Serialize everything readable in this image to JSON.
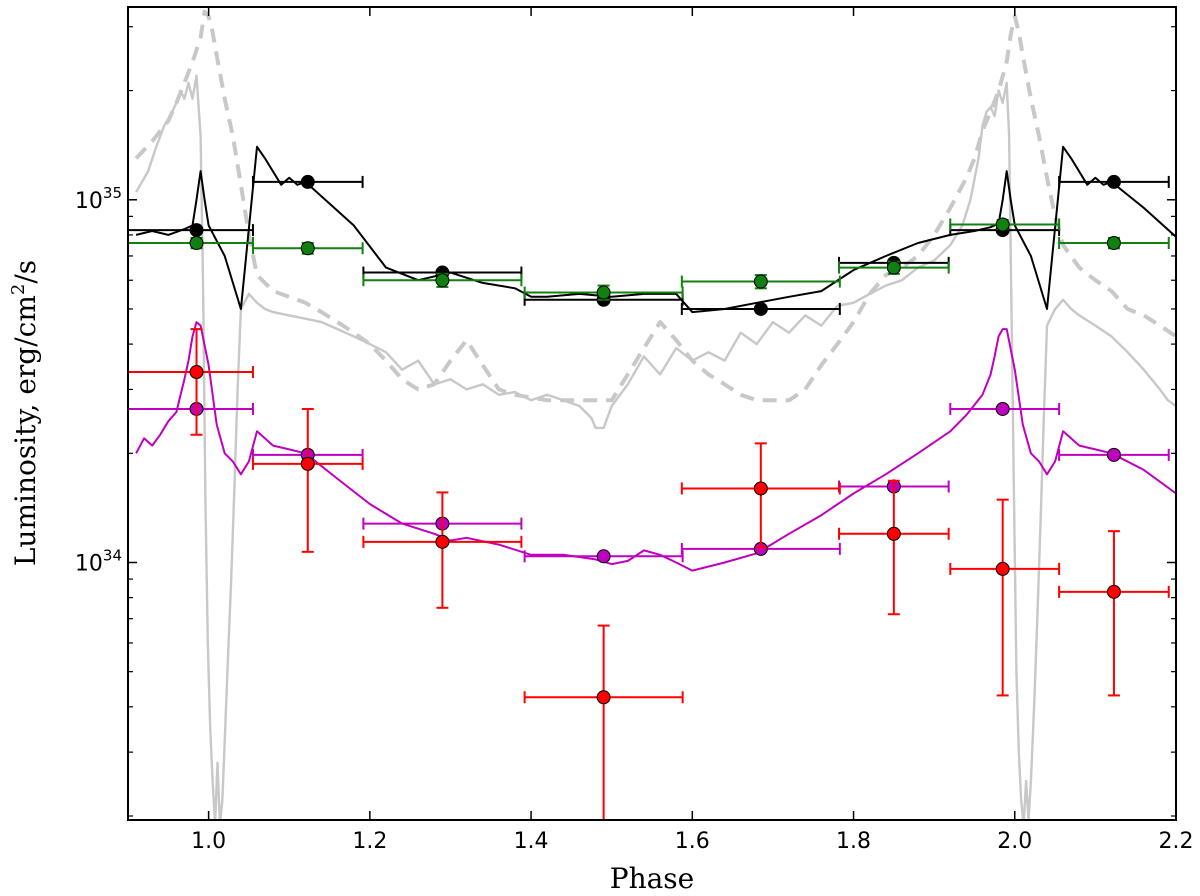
{
  "chart_data": {
    "type": "scatter",
    "title": "",
    "xlabel": "Phase",
    "ylabel_main": "Luminosity, erg/cm",
    "ylabel_sup": "2",
    "ylabel_tail": "/s",
    "xlim": [
      0.9,
      2.2
    ],
    "ylim": [
      1.95e+33,
      3.4e+35
    ],
    "yscale": "log",
    "grid": false,
    "x_ticks": [
      1.0,
      1.2,
      1.4,
      1.6,
      1.8,
      2.0,
      2.2
    ],
    "x_tick_labels": [
      "1.0",
      "1.2",
      "1.4",
      "1.6",
      "1.8",
      "2.0",
      "2.2"
    ],
    "y_major_ticks": [
      {
        "value": 1e+34,
        "base": "10",
        "exp": "34"
      },
      {
        "value": 1e+35,
        "base": "10",
        "exp": "35"
      }
    ],
    "y_minor_ticks": [
      2e+33,
      3e+33,
      4e+33,
      5e+33,
      6e+33,
      7e+33,
      8e+33,
      9e+33,
      2e+34,
      3e+34,
      4e+34,
      5e+34,
      6e+34,
      7e+34,
      8e+34,
      9e+34,
      2e+35,
      3e+35
    ],
    "colors": {
      "black": "#000000",
      "green": "#118011",
      "red": "#ff0000",
      "magenta": "#bf00bf",
      "gray": "#c8c8c8",
      "gray_dashed": "#c8c8c8"
    },
    "series": [
      {
        "name": "gray-solid-curve",
        "kind": "line",
        "color": "gray",
        "dash": false,
        "width": 2.4,
        "x": [
          0.91,
          0.925,
          0.935,
          0.945,
          0.955,
          0.96,
          0.965,
          0.97,
          0.975,
          0.98,
          0.985,
          0.99,
          0.993,
          0.996,
          0.999,
          1.002,
          1.005,
          1.008,
          1.011,
          1.014,
          1.017,
          1.02,
          1.024,
          1.028,
          1.032,
          1.036,
          1.04,
          1.05,
          1.06,
          1.07,
          1.08,
          1.1,
          1.12,
          1.14,
          1.16,
          1.18,
          1.2,
          1.22,
          1.24,
          1.26,
          1.28,
          1.3,
          1.32,
          1.34,
          1.36,
          1.38,
          1.4,
          1.42,
          1.44,
          1.46,
          1.475,
          1.48,
          1.49,
          1.5,
          1.52,
          1.54,
          1.56,
          1.58,
          1.6,
          1.62,
          1.64,
          1.66,
          1.68,
          1.7,
          1.72,
          1.74,
          1.76,
          1.78,
          1.8,
          1.82,
          1.84,
          1.86,
          1.88,
          1.9,
          1.92,
          1.935,
          1.945,
          1.955,
          1.96,
          1.965,
          1.97,
          1.975,
          1.98,
          1.985,
          1.99,
          1.993,
          1.996,
          1.999,
          2.002,
          2.005,
          2.008,
          2.011,
          2.014,
          2.017,
          2.02,
          2.024,
          2.028,
          2.032,
          2.036,
          2.04,
          2.05,
          2.06,
          2.07,
          2.08,
          2.1,
          2.12,
          2.14,
          2.16,
          2.18,
          2.19,
          2.2
        ],
        "y": [
          1.05e+35,
          1.2e+35,
          1.4e+35,
          1.6e+35,
          1.75e+35,
          1.85e+35,
          2e+35,
          1.9e+35,
          2.1e+35,
          1.9e+35,
          2.2e+35,
          1.5e+35,
          6e+34,
          1.5e+34,
          6e+33,
          3.5e+33,
          2.5e+33,
          1.9e+33,
          2.8e+33,
          1.9e+33,
          2.2e+33,
          3.2e+33,
          5.5e+33,
          9e+33,
          1.6e+34,
          3e+34,
          5e+34,
          5.5e+34,
          5.2e+34,
          5e+34,
          4.9e+34,
          4.8e+34,
          4.7e+34,
          4.6e+34,
          4.4e+34,
          4.2e+34,
          4e+34,
          3.8e+34,
          3.4e+34,
          3.6e+34,
          3.1e+34,
          3.2e+34,
          3e+34,
          3.1e+34,
          2.9e+34,
          2.95e+34,
          2.8e+34,
          2.9e+34,
          2.8e+34,
          2.7e+34,
          2.5e+34,
          2.35e+34,
          2.35e+34,
          2.7e+34,
          3.1e+34,
          3.7e+34,
          3.3e+34,
          3.9e+34,
          3.6e+34,
          3.8e+34,
          3.6e+34,
          4.3e+34,
          4e+34,
          4.6e+34,
          4.3e+34,
          4.8e+34,
          4.5e+34,
          5.1e+34,
          5.2e+34,
          5.5e+34,
          5.8e+34,
          6e+34,
          6.5e+34,
          6.8e+34,
          7.5e+34,
          8.5e+34,
          1e+35,
          1.3e+35,
          1.6e+35,
          1.75e+35,
          1.8e+35,
          1.7e+35,
          2e+35,
          1.85e+35,
          2.1e+35,
          1.5e+35,
          5e+34,
          1.5e+34,
          5e+33,
          3e+33,
          2.2e+33,
          1.9e+33,
          2.5e+33,
          1.95e+33,
          2.5e+33,
          4e+33,
          7e+33,
          1.3e+34,
          2.5e+34,
          4.5e+34,
          5e+34,
          5.3e+34,
          5e+34,
          4.8e+34,
          4.5e+34,
          4.2e+34,
          3.8e+34,
          3.4e+34,
          3e+34,
          2.8e+34,
          2.7e+34
        ]
      },
      {
        "name": "gray-dashed-curve",
        "kind": "line",
        "color": "gray_dashed",
        "dash": true,
        "width": 4,
        "x": [
          0.91,
          0.93,
          0.95,
          0.96,
          0.97,
          0.98,
          0.99,
          0.995,
          1.0,
          1.005,
          1.01,
          1.02,
          1.03,
          1.04,
          1.05,
          1.06,
          1.08,
          1.1,
          1.12,
          1.14,
          1.16,
          1.18,
          1.2,
          1.22,
          1.24,
          1.26,
          1.28,
          1.3,
          1.32,
          1.34,
          1.36,
          1.38,
          1.4,
          1.42,
          1.44,
          1.46,
          1.48,
          1.5,
          1.52,
          1.54,
          1.56,
          1.58,
          1.6,
          1.62,
          1.64,
          1.66,
          1.68,
          1.7,
          1.72,
          1.74,
          1.76,
          1.78,
          1.8,
          1.82,
          1.84,
          1.86,
          1.88,
          1.9,
          1.92,
          1.94,
          1.95,
          1.96,
          1.97,
          1.98,
          1.99,
          1.995,
          2.0,
          2.005,
          2.01,
          2.02,
          2.03,
          2.04,
          2.05,
          2.06,
          2.08,
          2.1,
          2.12,
          2.14,
          2.16,
          2.18,
          2.2
        ],
        "y": [
          1.3e+35,
          1.45e+35,
          1.65e+35,
          1.85e+35,
          2.1e+35,
          2.4e+35,
          2.8e+35,
          3.3e+35,
          3.2e+35,
          2.9e+35,
          2.5e+35,
          1.9e+35,
          1.5e+35,
          1.1e+35,
          8e+34,
          6.2e+34,
          5.6e+34,
          5.4e+34,
          5.2e+34,
          4.9e+34,
          4.6e+34,
          4.3e+34,
          4e+34,
          3.6e+34,
          3.2e+34,
          3e+34,
          3.1e+34,
          3.6e+34,
          4.1e+34,
          3.5e+34,
          3e+34,
          2.9e+34,
          2.85e+34,
          2.8e+34,
          2.8e+34,
          2.8e+34,
          2.8e+34,
          2.8e+34,
          3.3e+34,
          3.9e+34,
          4.6e+34,
          4.1e+34,
          3.6e+34,
          3.3e+34,
          3.1e+34,
          2.9e+34,
          2.8e+34,
          2.8e+34,
          2.8e+34,
          3e+34,
          3.5e+34,
          4e+34,
          4.6e+34,
          5.5e+34,
          6.2e+34,
          6.5e+34,
          7e+34,
          8e+34,
          9.5e+34,
          1.15e+35,
          1.3e+35,
          1.55e+35,
          1.75e+35,
          2e+35,
          2.4e+35,
          2.85e+35,
          3.2e+35,
          2.9e+35,
          2.5e+35,
          1.9e+35,
          1.5e+35,
          1.15e+35,
          9e+34,
          7.5e+34,
          6.5e+34,
          6e+34,
          5.6e+34,
          5e+34,
          4.8e+34,
          4.5e+34,
          4.2e+34
        ]
      },
      {
        "name": "black-model-line",
        "kind": "line",
        "color": "black",
        "dash": false,
        "width": 2,
        "x": [
          0.91,
          0.93,
          0.95,
          0.97,
          0.98,
          0.985,
          0.99,
          0.995,
          1.0,
          1.02,
          1.04,
          1.06,
          1.07,
          1.09,
          1.1,
          1.11,
          1.12,
          1.18,
          1.22,
          1.26,
          1.3,
          1.34,
          1.38,
          1.4,
          1.42,
          1.46,
          1.5,
          1.54,
          1.58,
          1.6,
          1.64,
          1.68,
          1.72,
          1.76,
          1.8,
          1.84,
          1.88,
          1.92,
          1.95,
          1.97,
          1.98,
          1.985,
          1.99,
          1.995,
          2.0,
          2.02,
          2.04,
          2.06,
          2.07,
          2.09,
          2.1,
          2.11,
          2.12,
          2.16,
          2.2
        ],
        "y": [
          8e+34,
          8.2e+34,
          8e+34,
          8.3e+34,
          8.5e+34,
          1e+35,
          1.2e+35,
          1e+35,
          8.5e+34,
          7e+34,
          5e+34,
          1.4e+35,
          1.3e+35,
          1.1e+35,
          1.15e+35,
          1.1e+35,
          1.12e+35,
          8.5e+34,
          6.5e+34,
          6e+34,
          6.3e+34,
          5.9e+34,
          5.7e+34,
          5.4e+34,
          5.4e+34,
          5.5e+34,
          5.4e+34,
          5.5e+34,
          5.5e+34,
          4.9e+34,
          5e+34,
          5.2e+34,
          5.4e+34,
          5.6e+34,
          6.4e+34,
          7e+34,
          7.6e+34,
          8e+34,
          8.2e+34,
          8.4e+34,
          8.6e+34,
          1e+35,
          1.2e+35,
          1e+35,
          8.5e+34,
          7e+34,
          5e+34,
          1.4e+35,
          1.3e+35,
          1.1e+35,
          1.15e+35,
          1.1e+35,
          1.12e+35,
          9.5e+34,
          7.9e+34
        ]
      },
      {
        "name": "magenta-model-line",
        "kind": "line",
        "color": "magenta",
        "dash": false,
        "width": 2,
        "x": [
          0.91,
          0.92,
          0.93,
          0.94,
          0.95,
          0.96,
          0.97,
          0.975,
          0.98,
          0.985,
          0.99,
          1.0,
          1.01,
          1.02,
          1.03,
          1.04,
          1.05,
          1.06,
          1.08,
          1.1,
          1.12,
          1.16,
          1.2,
          1.24,
          1.28,
          1.3,
          1.32,
          1.36,
          1.4,
          1.44,
          1.48,
          1.5,
          1.52,
          1.54,
          1.56,
          1.58,
          1.6,
          1.64,
          1.68,
          1.72,
          1.76,
          1.8,
          1.84,
          1.88,
          1.92,
          1.94,
          1.96,
          1.97,
          1.975,
          1.98,
          1.985,
          1.99,
          2.0,
          2.01,
          2.02,
          2.03,
          2.04,
          2.05,
          2.06,
          2.08,
          2.1,
          2.12,
          2.16,
          2.2
        ],
        "y": [
          2e+34,
          2.2e+34,
          2.1e+34,
          2.25e+34,
          2.45e+34,
          2.6e+34,
          3.2e+34,
          3.6e+34,
          4.2e+34,
          4.6e+34,
          4.5e+34,
          3.5e+34,
          2.4e+34,
          2e+34,
          1.9e+34,
          1.75e+34,
          1.9e+34,
          2.3e+34,
          2.1e+34,
          2.05e+34,
          2e+34,
          1.7e+34,
          1.45e+34,
          1.28e+34,
          1.2e+34,
          1.15e+34,
          1.17e+34,
          1.12e+34,
          1.05e+34,
          1.05e+34,
          1.02e+34,
          9.9e+33,
          1.01e+34,
          1.08e+34,
          1.05e+34,
          1e+34,
          9.5e+33,
          1e+34,
          1.06e+34,
          1.2e+34,
          1.35e+34,
          1.55e+34,
          1.75e+34,
          2e+34,
          2.3e+34,
          2.55e+34,
          2.9e+34,
          3.3e+34,
          3.7e+34,
          4.2e+34,
          4.4e+34,
          4.4e+34,
          3.4e+34,
          2.4e+34,
          2e+34,
          1.9e+34,
          1.75e+34,
          1.9e+34,
          2.3e+34,
          2.1e+34,
          2.05e+34,
          2e+34,
          1.8e+34,
          1.55e+34
        ]
      },
      {
        "name": "black-points",
        "kind": "errorbar",
        "color": "black",
        "points": [
          {
            "x": 0.985,
            "y": 8.25e+34,
            "xerr": [
              0.085,
              0.07
            ],
            "yerr": null
          },
          {
            "x": 1.123,
            "y": 1.12e+35,
            "xerr": [
              0.068,
              0.068
            ],
            "yerr": null
          },
          {
            "x": 1.29,
            "y": 6.3e+34,
            "xerr": [
              0.098,
              0.098
            ],
            "yerr": null
          },
          {
            "x": 1.49,
            "y": 5.3e+34,
            "xerr": [
              0.098,
              0.098
            ],
            "yerr": null
          },
          {
            "x": 1.685,
            "y": 5e+34,
            "xerr": [
              0.098,
              0.098
            ],
            "yerr": null
          },
          {
            "x": 1.85,
            "y": 6.7e+34,
            "xerr": [
              0.068,
              0.068
            ],
            "yerr": null
          },
          {
            "x": 1.985,
            "y": 8.25e+34,
            "xerr": [
              0.065,
              0.07
            ],
            "yerr": null
          },
          {
            "x": 2.123,
            "y": 1.12e+35,
            "xerr": [
              0.068,
              0.068
            ],
            "yerr": null
          }
        ]
      },
      {
        "name": "green-points",
        "kind": "errorbar",
        "color": "green",
        "points": [
          {
            "x": 0.985,
            "y": 7.6e+34,
            "xerr": [
              0.085,
              0.07
            ],
            "yerr": [
              2.5e+33,
              2.5e+33
            ]
          },
          {
            "x": 1.123,
            "y": 7.35e+34,
            "xerr": [
              0.068,
              0.068
            ],
            "yerr": [
              2.5e+33,
              2.5e+33
            ]
          },
          {
            "x": 1.29,
            "y": 6e+34,
            "xerr": [
              0.098,
              0.098
            ],
            "yerr": [
              2.5e+33,
              2.5e+33
            ]
          },
          {
            "x": 1.49,
            "y": 5.55e+34,
            "xerr": [
              0.098,
              0.098
            ],
            "yerr": [
              2.5e+33,
              2.5e+33
            ]
          },
          {
            "x": 1.685,
            "y": 5.95e+34,
            "xerr": [
              0.098,
              0.098
            ],
            "yerr": [
              2.5e+33,
              2.5e+33
            ]
          },
          {
            "x": 1.85,
            "y": 6.5e+34,
            "xerr": [
              0.068,
              0.068
            ],
            "yerr": [
              2.5e+33,
              2.5e+33
            ]
          },
          {
            "x": 1.985,
            "y": 8.55e+34,
            "xerr": [
              0.065,
              0.07
            ],
            "yerr": [
              2.5e+33,
              2.5e+33
            ]
          },
          {
            "x": 2.123,
            "y": 7.6e+34,
            "xerr": [
              0.068,
              0.068
            ],
            "yerr": [
              2.5e+33,
              2.5e+33
            ]
          }
        ]
      },
      {
        "name": "magenta-points",
        "kind": "errorbar",
        "color": "magenta",
        "points": [
          {
            "x": 0.985,
            "y": 2.65e+34,
            "xerr": [
              0.085,
              0.07
            ],
            "yerr": null
          },
          {
            "x": 1.123,
            "y": 1.98e+34,
            "xerr": [
              0.068,
              0.068
            ],
            "yerr": null
          },
          {
            "x": 1.29,
            "y": 1.28e+34,
            "xerr": [
              0.098,
              0.098
            ],
            "yerr": null
          },
          {
            "x": 1.49,
            "y": 1.04e+34,
            "xerr": [
              0.098,
              0.098
            ],
            "yerr": null
          },
          {
            "x": 1.685,
            "y": 1.09e+34,
            "xerr": [
              0.098,
              0.098
            ],
            "yerr": null
          },
          {
            "x": 1.85,
            "y": 1.62e+34,
            "xerr": [
              0.068,
              0.068
            ],
            "yerr": null
          },
          {
            "x": 1.985,
            "y": 2.65e+34,
            "xerr": [
              0.065,
              0.07
            ],
            "yerr": null
          },
          {
            "x": 2.123,
            "y": 1.98e+34,
            "xerr": [
              0.068,
              0.068
            ],
            "yerr": null
          }
        ]
      },
      {
        "name": "red-points",
        "kind": "errorbar",
        "color": "red",
        "points": [
          {
            "x": 0.985,
            "y": 3.35e+34,
            "xerr": [
              0.085,
              0.07
            ],
            "yerr": [
              1.1e+34,
              1.05e+34
            ]
          },
          {
            "x": 1.123,
            "y": 1.87e+34,
            "xerr": [
              0.068,
              0.068
            ],
            "yerr": [
              8e+33,
              7.8e+33
            ]
          },
          {
            "x": 1.29,
            "y": 1.14e+34,
            "xerr": [
              0.098,
              0.098
            ],
            "yerr": [
              3.9e+33,
              4.2e+33
            ]
          },
          {
            "x": 1.49,
            "y": 4.25e+33,
            "xerr": [
              0.098,
              0.098
            ],
            "yerr": [
              2.3e+33,
              2.45e+33
            ]
          },
          {
            "x": 1.685,
            "y": 1.6e+34,
            "xerr": [
              0.098,
              0.098
            ],
            "yerr": [
              5e+33,
              5.3e+33
            ]
          },
          {
            "x": 1.85,
            "y": 1.2e+34,
            "xerr": [
              0.068,
              0.068
            ],
            "yerr": [
              4.8e+33,
              4.8e+33
            ]
          },
          {
            "x": 1.985,
            "y": 9.6e+33,
            "xerr": [
              0.065,
              0.07
            ],
            "yerr": [
              5.3e+33,
              5.3e+33
            ]
          },
          {
            "x": 2.123,
            "y": 8.3e+33,
            "xerr": [
              0.068,
              0.068
            ],
            "yerr": [
              4e+33,
              3.9e+33
            ]
          }
        ]
      }
    ]
  }
}
